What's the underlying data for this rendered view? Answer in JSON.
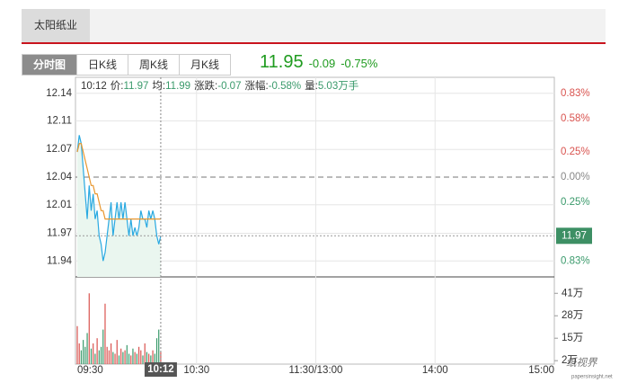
{
  "header": {
    "tab": "太阳纸业",
    "views": [
      "分时图",
      "日K线",
      "周K线",
      "月K线"
    ],
    "price": "11.95",
    "change": "-0.09",
    "change_pct": "-0.75%"
  },
  "info": [
    {
      "label": "10:12"
    },
    {
      "label": "价:",
      "value": "11.97"
    },
    {
      "label": "均:",
      "value": "11.99"
    },
    {
      "label": "涨跌:",
      "value": "-0.07"
    },
    {
      "label": "涨幅:",
      "value": "-0.58%"
    },
    {
      "label": "量:",
      "value": "5.03万手"
    }
  ],
  "watermark": {
    "brand": "纸视界",
    "site": "papersinsight.net"
  },
  "chart_data": [
    {
      "type": "line",
      "x": [
        0,
        1,
        2,
        3,
        4,
        5,
        6,
        7,
        8,
        9,
        10,
        11,
        12,
        13,
        14,
        15,
        16,
        17,
        18,
        19,
        20,
        21,
        22,
        23,
        24,
        25,
        26,
        27,
        28,
        29,
        30,
        31,
        32,
        33,
        34,
        35,
        36,
        37,
        38,
        39,
        40,
        41,
        42
      ],
      "xlim": [
        0,
        240
      ],
      "xticks": [
        {
          "value": 0,
          "label": "09:30"
        },
        {
          "value": 60,
          "label": "10:30"
        },
        {
          "value": 120,
          "label": "11:30/13:00"
        },
        {
          "value": 180,
          "label": "14:00"
        },
        {
          "value": 240,
          "label": "15:00"
        }
      ],
      "series": [
        {
          "color": "#29a9e1",
          "values": [
            12.07,
            12.09,
            12.08,
            12.05,
            12.02,
            11.99,
            12.03,
            12.0,
            12.02,
            11.99,
            12.0,
            11.97,
            11.96,
            11.94,
            11.95,
            11.97,
            11.99,
            12.01,
            11.97,
            11.99,
            12.01,
            11.99,
            12.01,
            11.99,
            12.01,
            11.99,
            11.97,
            11.99,
            11.97,
            11.98,
            11.97,
            11.98,
            12.0,
            11.99,
            11.99,
            11.98,
            12.0,
            11.99,
            12.0,
            11.99,
            11.97,
            11.96,
            11.97
          ]
        },
        {
          "color": "#e8962e",
          "values": [
            12.07,
            12.08,
            12.08,
            12.07,
            12.06,
            12.05,
            12.04,
            12.03,
            12.03,
            12.02,
            12.02,
            12.01,
            12.0,
            12.0,
            11.99,
            11.99,
            11.99,
            11.99,
            11.99,
            11.99,
            11.99,
            11.99,
            11.99,
            11.99,
            11.99,
            11.99,
            11.99,
            11.99,
            11.99,
            11.99,
            11.99,
            11.99,
            11.99,
            11.99,
            11.99,
            11.99,
            11.99,
            11.99,
            11.99,
            11.99,
            11.99,
            11.99,
            11.99
          ]
        }
      ],
      "ylim": [
        11.921,
        12.159
      ],
      "yticks": [
        12.14,
        {
          "value": 12.107,
          "label": "12.11"
        },
        {
          "value": 12.073,
          "label": "12.07"
        },
        12.04,
        {
          "value": 12.007,
          "label": "12.01"
        },
        {
          "value": 11.973,
          "label": "11.97"
        },
        11.94
      ],
      "baseline": 12.04,
      "y2lim": [
        -0.988,
        0.988
      ],
      "y2ticks": [
        {
          "value": 0.83,
          "label": "0.83%"
        },
        {
          "value": 0.58,
          "label": "0.58%"
        },
        {
          "value": 0.25,
          "label": "0.25%"
        },
        {
          "value": 0,
          "label": "0.00%"
        },
        {
          "value": -0.25,
          "label": "0.25%"
        },
        {
          "value": -0.83,
          "label": "0.83%"
        }
      ],
      "cursor": {
        "x": 42,
        "x_label": "10:12",
        "y": 11.97
      },
      "grid": true
    },
    {
      "type": "bar",
      "values": [
        22,
        12,
        8,
        14,
        10,
        18,
        41,
        9,
        12,
        6,
        15,
        8,
        10,
        20,
        35,
        10,
        8,
        12,
        7,
        6,
        14,
        5,
        9,
        7,
        8,
        11,
        6,
        5,
        9,
        7,
        6,
        10,
        8,
        5,
        12,
        7,
        6,
        5,
        8,
        6,
        15,
        20,
        7
      ],
      "ylim": [
        0,
        50.5
      ],
      "yticks": [
        {
          "value": 41,
          "label": "41万"
        },
        {
          "value": 28,
          "label": "28万"
        },
        {
          "value": 15,
          "label": "15万"
        },
        {
          "value": 2,
          "label": "2万"
        }
      ],
      "up_color": "#d9534f",
      "down_color": "#3a9a6b"
    }
  ]
}
